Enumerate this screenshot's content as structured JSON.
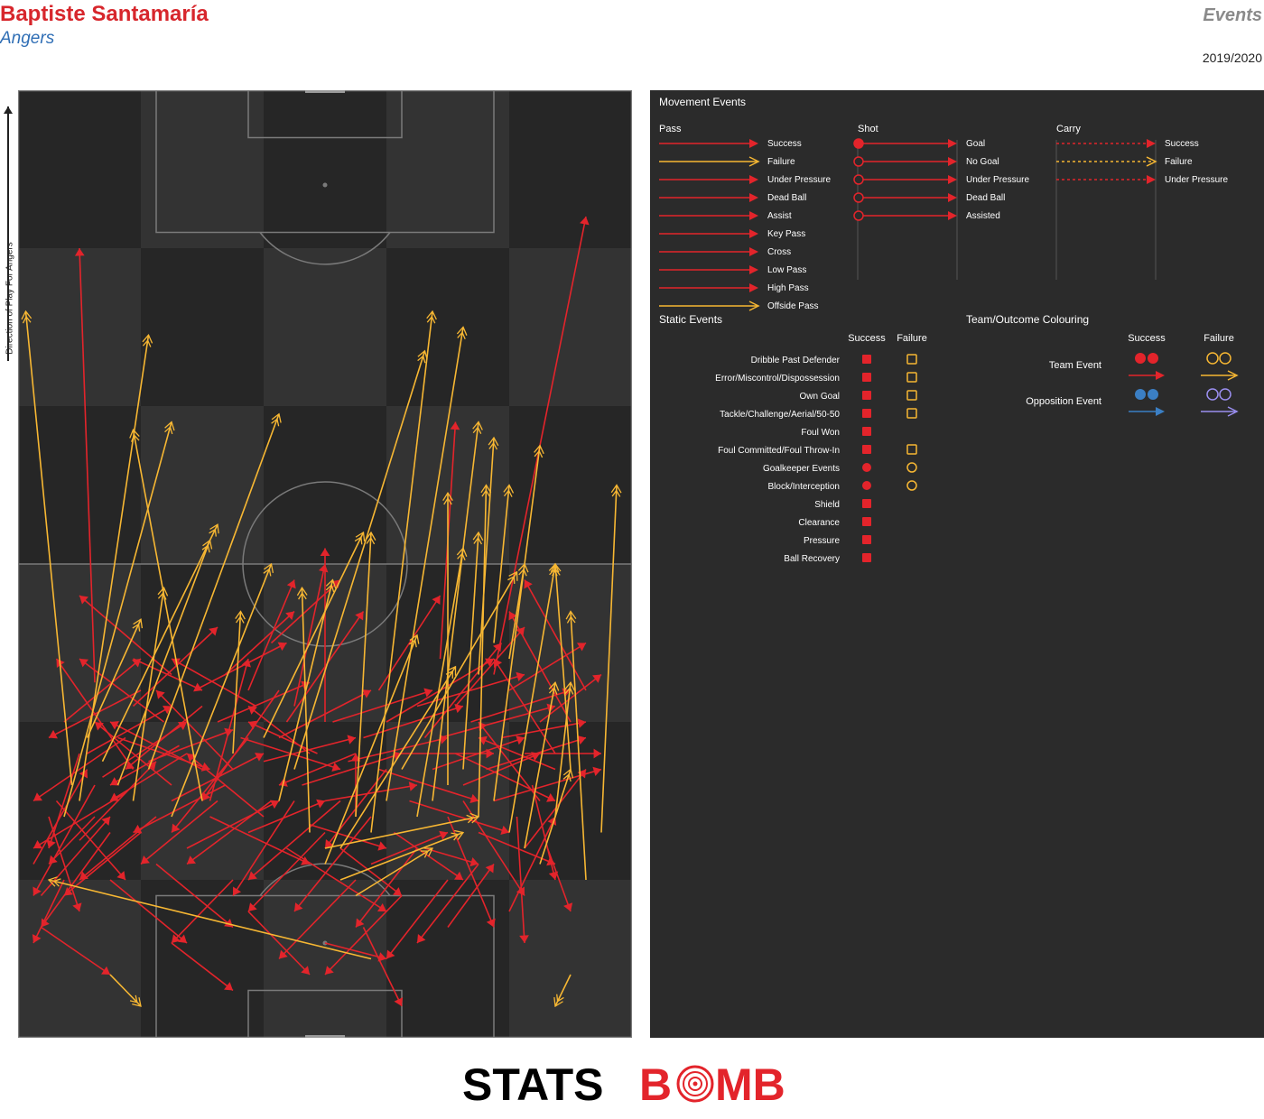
{
  "header": {
    "player": "Baptiste Santamaría",
    "team": "Angers",
    "report": "Events",
    "season": "2019/2020",
    "direction": "Direction of Play For Angers"
  },
  "colors": {
    "success": "#e3242b",
    "failure": "#f7b733",
    "opposition_success": "#3b7fc4",
    "opposition_failure": "#9b8ff0",
    "pitch_dark": "#262626",
    "pitch_light": "#333333",
    "legend_bg": "#2b2b2b"
  },
  "legend": {
    "movement_title": "Movement Events",
    "pass": {
      "title": "Pass",
      "items": [
        "Success",
        "Failure",
        "Under Pressure",
        "Dead Ball",
        "Assist",
        "Key Pass",
        "Cross",
        "Low Pass",
        "High Pass",
        "Offside Pass"
      ]
    },
    "shot": {
      "title": "Shot",
      "items": [
        "Goal",
        "No Goal",
        "Under Pressure",
        "Dead Ball",
        "Assisted"
      ]
    },
    "carry": {
      "title": "Carry",
      "items": [
        "Success",
        "Failure",
        "Under Pressure"
      ]
    },
    "static_title": "Static Events",
    "static_success": "Success",
    "static_failure": "Failure",
    "static_items": [
      "Dribble Past Defender",
      "Error/Miscontrol/Dispossession",
      "Own Goal",
      "Tackle/Challenge/Aerial/50-50",
      "Foul Won",
      "Foul Committed/Foul Throw-In",
      "Goalkeeper Events",
      "Block/Interception",
      "Shield",
      "Clearance",
      "Pressure",
      "Ball Recovery"
    ],
    "team_title": "Team/Outcome Colouring",
    "team_success": "Success",
    "team_failure": "Failure",
    "team_items": [
      "Team Event",
      "Opposition Event"
    ]
  },
  "chart_data": {
    "type": "scatter",
    "description_units": "pitch coordinates: x 0-80 across pitch width, y 0-120 along pitch length, attacking upward",
    "xlim": [
      0,
      80
    ],
    "ylim": [
      0,
      120
    ],
    "series": [
      {
        "name": "Success",
        "color": "#e3242b",
        "passes": [
          [
            2,
            22,
            9,
            34
          ],
          [
            3,
            18,
            12,
            28
          ],
          [
            5,
            30,
            14,
            20
          ],
          [
            6,
            40,
            16,
            48
          ],
          [
            8,
            25,
            18,
            35
          ],
          [
            9,
            36,
            20,
            42
          ],
          [
            10,
            28,
            4,
            22
          ],
          [
            10,
            45,
            8,
            100
          ],
          [
            11,
            33,
            22,
            40
          ],
          [
            12,
            20,
            22,
            12
          ],
          [
            13,
            38,
            25,
            34
          ],
          [
            14,
            31,
            2,
            24
          ],
          [
            15,
            42,
            26,
            52
          ],
          [
            16,
            26,
            6,
            18
          ],
          [
            17,
            35,
            28,
            39
          ],
          [
            18,
            22,
            28,
            14
          ],
          [
            19,
            40,
            8,
            48
          ],
          [
            20,
            30,
            32,
            36
          ],
          [
            21,
            37,
            12,
            32
          ],
          [
            22,
            24,
            34,
            30
          ],
          [
            23,
            44,
            35,
            50
          ],
          [
            24,
            34,
            12,
            40
          ],
          [
            25,
            28,
            38,
            22
          ],
          [
            26,
            40,
            38,
            45
          ],
          [
            27,
            32,
            15,
            26
          ],
          [
            28,
            20,
            20,
            12
          ],
          [
            29,
            38,
            42,
            34
          ],
          [
            30,
            26,
            40,
            30
          ],
          [
            31,
            42,
            20,
            48
          ],
          [
            32,
            35,
            44,
            38
          ],
          [
            33,
            30,
            22,
            22
          ],
          [
            34,
            38,
            46,
            44
          ],
          [
            35,
            24,
            48,
            16
          ],
          [
            36,
            42,
            40,
            60
          ],
          [
            37,
            32,
            50,
            36
          ],
          [
            38,
            27,
            48,
            24
          ],
          [
            39,
            36,
            30,
            40
          ],
          [
            40,
            30,
            52,
            32
          ],
          [
            41,
            40,
            54,
            44
          ],
          [
            42,
            24,
            50,
            18
          ],
          [
            43,
            35,
            56,
            38
          ],
          [
            44,
            28,
            44,
            36
          ],
          [
            45,
            38,
            58,
            42
          ],
          [
            46,
            22,
            56,
            26
          ],
          [
            47,
            34,
            60,
            30
          ],
          [
            48,
            40,
            62,
            48
          ],
          [
            49,
            26,
            58,
            20
          ],
          [
            50,
            36,
            62,
            36
          ],
          [
            51,
            30,
            64,
            26
          ],
          [
            52,
            42,
            66,
            46
          ],
          [
            53,
            24,
            60,
            22
          ],
          [
            54,
            34,
            66,
            38
          ],
          [
            55,
            38,
            70,
            42
          ],
          [
            56,
            28,
            62,
            14
          ],
          [
            57,
            36,
            70,
            30
          ],
          [
            58,
            32,
            68,
            36
          ],
          [
            59,
            40,
            72,
            44
          ],
          [
            60,
            26,
            70,
            22
          ],
          [
            61,
            34,
            74,
            38
          ],
          [
            62,
            30,
            76,
            34
          ],
          [
            63,
            38,
            74,
            40
          ],
          [
            64,
            44,
            74,
            50
          ],
          [
            65,
            28,
            66,
            12
          ],
          [
            66,
            36,
            76,
            36
          ],
          [
            67,
            32,
            70,
            20
          ],
          [
            68,
            40,
            76,
            46
          ],
          [
            69,
            24,
            72,
            16
          ],
          [
            70,
            34,
            60,
            38
          ],
          [
            62,
            46,
            74,
            104
          ],
          [
            55,
            48,
            57,
            78
          ],
          [
            40,
            40,
            40,
            62
          ],
          [
            30,
            44,
            36,
            58
          ],
          [
            20,
            46,
            8,
            56
          ],
          [
            15,
            34,
            5,
            48
          ],
          [
            44,
            20,
            34,
            10
          ],
          [
            50,
            18,
            40,
            8
          ],
          [
            52,
            24,
            44,
            14
          ],
          [
            56,
            20,
            48,
            10
          ],
          [
            58,
            30,
            66,
            18
          ],
          [
            60,
            22,
            52,
            12
          ],
          [
            48,
            34,
            40,
            24
          ],
          [
            46,
            28,
            36,
            16
          ],
          [
            44,
            36,
            34,
            32
          ],
          [
            42,
            30,
            30,
            20
          ],
          [
            40,
            26,
            30,
            16
          ],
          [
            38,
            36,
            30,
            42
          ],
          [
            36,
            30,
            28,
            18
          ],
          [
            34,
            44,
            24,
            30
          ],
          [
            32,
            28,
            22,
            36
          ],
          [
            30,
            38,
            20,
            26
          ],
          [
            28,
            34,
            18,
            44
          ],
          [
            26,
            30,
            16,
            22
          ],
          [
            24,
            42,
            14,
            34
          ],
          [
            22,
            36,
            12,
            30
          ],
          [
            20,
            32,
            10,
            40
          ],
          [
            18,
            28,
            8,
            20
          ],
          [
            16,
            44,
            4,
            38
          ],
          [
            14,
            38,
            2,
            30
          ],
          [
            12,
            26,
            3,
            14
          ],
          [
            10,
            32,
            2,
            18
          ],
          [
            8,
            36,
            4,
            24
          ],
          [
            6,
            20,
            2,
            12
          ],
          [
            4,
            28,
            8,
            16
          ],
          [
            20,
            12,
            28,
            6
          ],
          [
            30,
            16,
            38,
            8
          ],
          [
            40,
            12,
            48,
            10
          ],
          [
            56,
            14,
            62,
            22
          ],
          [
            64,
            16,
            70,
            28
          ],
          [
            66,
            24,
            74,
            34
          ],
          [
            68,
            30,
            60,
            40
          ],
          [
            70,
            36,
            62,
            48
          ],
          [
            72,
            40,
            64,
            54
          ],
          [
            74,
            44,
            66,
            58
          ],
          [
            45,
            14,
            50,
            4
          ],
          [
            3,
            14,
            12,
            8
          ],
          [
            25,
            30,
            30,
            48
          ],
          [
            35,
            40,
            45,
            54
          ],
          [
            47,
            44,
            55,
            56
          ],
          [
            53,
            38,
            63,
            50
          ],
          [
            57,
            42,
            66,
            52
          ],
          [
            27,
            46,
            36,
            54
          ],
          [
            33,
            50,
            42,
            58
          ],
          [
            15,
            48,
            24,
            44
          ]
        ]
      },
      {
        "name": "Failure",
        "color": "#f7b733",
        "passes": [
          [
            7,
            32,
            1,
            92
          ],
          [
            8,
            30,
            17,
            89
          ],
          [
            6,
            28,
            20,
            78
          ],
          [
            11,
            35,
            26,
            65
          ],
          [
            13,
            32,
            25,
            63
          ],
          [
            9,
            38,
            16,
            53
          ],
          [
            15,
            30,
            19,
            57
          ],
          [
            17,
            34,
            34,
            79
          ],
          [
            20,
            28,
            33,
            60
          ],
          [
            24,
            30,
            15,
            77
          ],
          [
            28,
            36,
            29,
            54
          ],
          [
            32,
            38,
            45,
            64
          ],
          [
            34,
            30,
            41,
            58
          ],
          [
            36,
            34,
            53,
            87
          ],
          [
            38,
            26,
            37,
            57
          ],
          [
            40,
            22,
            52,
            51
          ],
          [
            42,
            24,
            57,
            47
          ],
          [
            44,
            28,
            46,
            64
          ],
          [
            46,
            26,
            54,
            92
          ],
          [
            48,
            30,
            58,
            90
          ],
          [
            50,
            34,
            65,
            59
          ],
          [
            52,
            28,
            58,
            62
          ],
          [
            54,
            30,
            60,
            78
          ],
          [
            56,
            32,
            56,
            69
          ],
          [
            58,
            34,
            60,
            64
          ],
          [
            60,
            28,
            61,
            70
          ],
          [
            62,
            30,
            68,
            75
          ],
          [
            64,
            26,
            70,
            60
          ],
          [
            66,
            24,
            70,
            45
          ],
          [
            68,
            22,
            72,
            34
          ],
          [
            70,
            28,
            72,
            45
          ],
          [
            72,
            34,
            70,
            60
          ],
          [
            74,
            20,
            72,
            54
          ],
          [
            76,
            26,
            78,
            70
          ],
          [
            44,
            18,
            54,
            24
          ],
          [
            42,
            20,
            58,
            26
          ],
          [
            40,
            24,
            60,
            28
          ],
          [
            46,
            10,
            4,
            20
          ],
          [
            72,
            8,
            70,
            4
          ],
          [
            12,
            8,
            16,
            4
          ],
          [
            60,
            46,
            62,
            76
          ],
          [
            62,
            50,
            64,
            70
          ],
          [
            64,
            48,
            66,
            60
          ]
        ]
      }
    ]
  }
}
